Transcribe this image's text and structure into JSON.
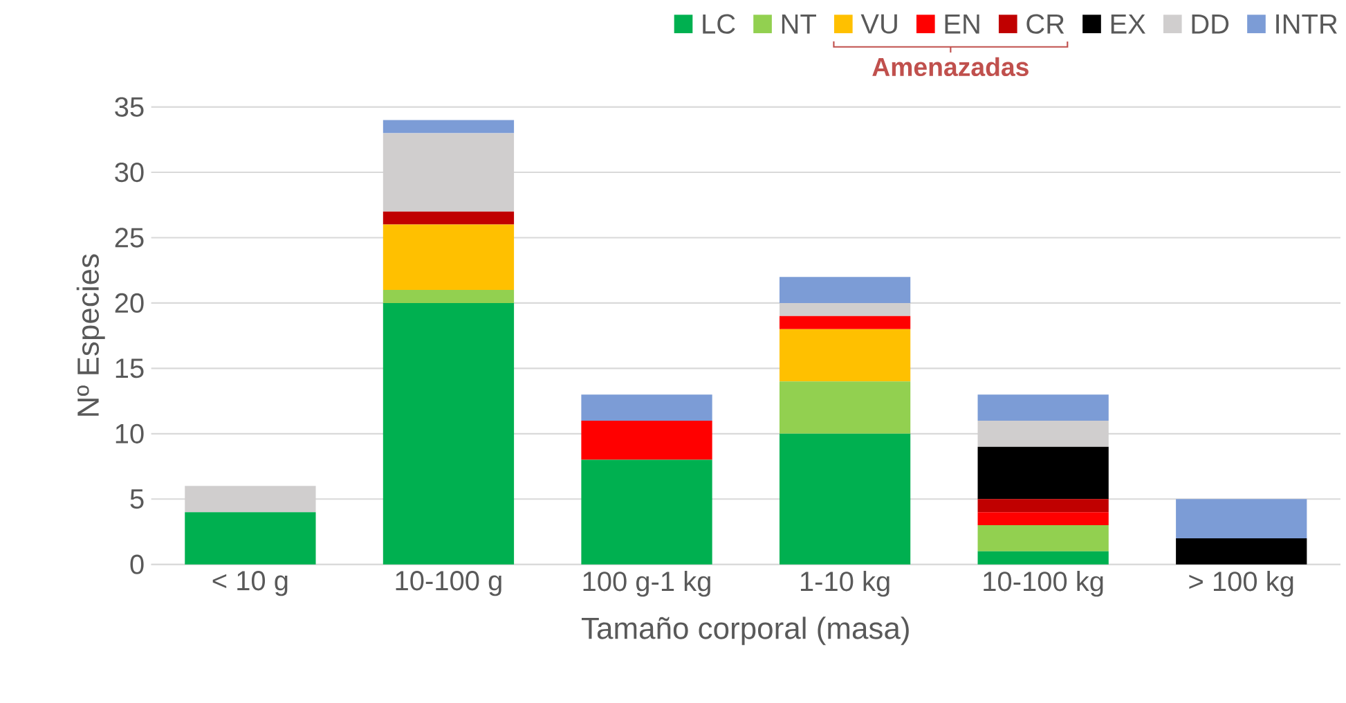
{
  "chart_data": {
    "type": "bar",
    "stacked": true,
    "xlabel": "Tamaño corporal (masa)",
    "ylabel": "Nº Especies",
    "categories": [
      "< 10 g",
      "10-100 g",
      "100 g-1 kg",
      "1-10 kg",
      "10-100 kg",
      "> 100 kg"
    ],
    "series": [
      {
        "name": "LC",
        "color": "#00b050",
        "values": [
          4,
          20,
          8,
          10,
          1,
          0
        ]
      },
      {
        "name": "NT",
        "color": "#92d050",
        "values": [
          0,
          1,
          0,
          4,
          2,
          0
        ]
      },
      {
        "name": "VU",
        "color": "#ffc000",
        "values": [
          0,
          5,
          0,
          4,
          0,
          0
        ]
      },
      {
        "name": "EN",
        "color": "#ff0000",
        "values": [
          0,
          0,
          3,
          1,
          1,
          0
        ]
      },
      {
        "name": "CR",
        "color": "#c00000",
        "values": [
          0,
          1,
          0,
          0,
          1,
          0
        ]
      },
      {
        "name": "EX",
        "color": "#000000",
        "values": [
          0,
          0,
          0,
          0,
          4,
          2
        ]
      },
      {
        "name": "DD",
        "color": "#d0cece",
        "values": [
          2,
          6,
          0,
          1,
          2,
          0
        ]
      },
      {
        "name": "INTR",
        "color": "#7c9cd6",
        "values": [
          0,
          1,
          2,
          2,
          2,
          3
        ]
      }
    ],
    "ylim": [
      0,
      35
    ],
    "yticks": [
      0,
      5,
      10,
      15,
      20,
      25,
      30,
      35
    ],
    "grid": "y",
    "legend": "top right",
    "annotations": [
      "Amenazadas"
    ]
  }
}
